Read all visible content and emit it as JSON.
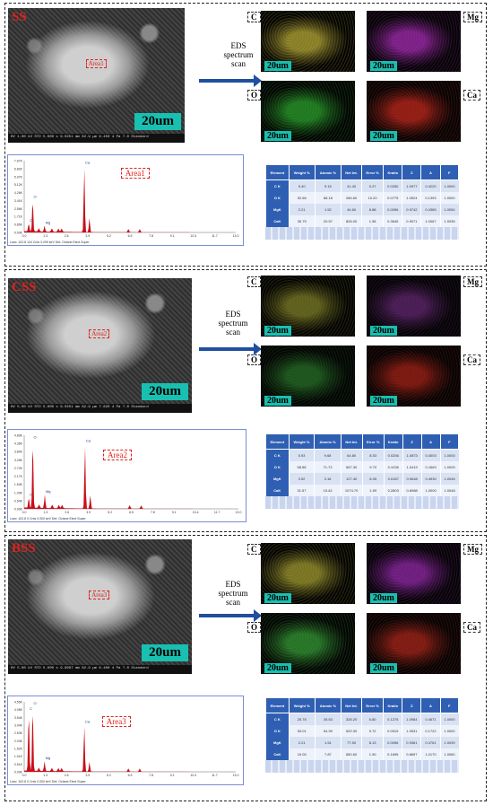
{
  "figure": {
    "eds_text": [
      "EDS",
      "spectrum",
      "scan"
    ],
    "panels": [
      {
        "sample": "SS",
        "area": "Area1",
        "scale": "20um",
        "sem_bar": "HV 1.00 kV  STD 5.000 s  9.0251 mm  82.9 µm  9.450 4 Pa  7.0  Standard",
        "spec_foot": "Lsec: 102.8      124 Cnts      3.299 keV      Det: Octane Elect Super",
        "elements": [
          "C",
          "Mg",
          "O",
          "Ca"
        ],
        "map_colors": [
          "#c8b83a",
          "#b52fc3",
          "#2fb02f",
          "#d22b1e"
        ],
        "spectrum": {
          "y_ticks": [
            "7.67K",
            "6.82K",
            "5.97K",
            "5.12K",
            "4.26K",
            "3.41K",
            "2.56K",
            "1.71K",
            "0.85K",
            "0.00K"
          ],
          "x_ticks": [
            "0.0",
            "1.3",
            "2.6",
            "3.9",
            "5.2",
            "6.5",
            "7.8",
            "9.1",
            "10.4",
            "11.7",
            "13.0"
          ],
          "peaks": [
            {
              "label": "C",
              "x": 0.28,
              "y": 0.12
            },
            {
              "label": "O",
              "x": 0.52,
              "y": 0.48
            },
            {
              "label": "Mg",
              "x": 1.25,
              "y": 0.09
            },
            {
              "label": "Ca",
              "x": 3.69,
              "y": 1.0
            },
            {
              "label": "",
              "x": 4.01,
              "y": 0.22
            }
          ]
        },
        "table": {
          "headers": [
            "Element",
            "Weight %",
            "Atomic %",
            "Net Int.",
            "Error %",
            "Kratio",
            "Z",
            "A",
            "F"
          ],
          "rows": [
            [
              "C K",
              "5.40",
              "9.15",
              "41.40",
              "9.27",
              "0.0250",
              "1.0977",
              "0.4220",
              "1.0000"
            ],
            [
              "O K",
              "52.66",
              "68.18",
              "266.60",
              "10.20",
              "0.0775",
              "1.0524",
              "0.1393",
              "1.0000"
            ],
            [
              "MgK",
              "2.21",
              "1.52",
              "44.60",
              "8.88",
              "0.0096",
              "0.9742",
              "0.4365",
              "1.0054"
            ],
            [
              "CaK",
              "39.75",
              "20.57",
              "828.00",
              "1.58",
              "0.3645",
              "0.9071",
              "1.0067",
              "1.0035"
            ]
          ]
        }
      },
      {
        "sample": "CSS",
        "area": "Area2",
        "scale": "20um",
        "sem_bar": "HV 5.00 kV  STD 5.000 s  9.0251 mm  82.9 µm  7.620 4 Pa  7.0  Standard",
        "spec_foot": "Lsec: 102.8      0 Cnts      0.000 keV      Det: Octane Elect Super",
        "elements": [
          "C",
          "Mg",
          "O",
          "Ca"
        ],
        "map_colors": [
          "#8a8a2a",
          "#6a2a7a",
          "#2a7a2a",
          "#b02418"
        ],
        "spectrum": {
          "y_ticks": [
            "4.89K",
            "4.35K",
            "3.80K",
            "3.26K",
            "2.72K",
            "2.17K",
            "1.63K",
            "1.09K",
            "0.54K",
            "0.00K"
          ],
          "x_ticks": [
            "0.0",
            "1.3",
            "2.6",
            "3.9",
            "5.2",
            "6.5",
            "7.8",
            "9.1",
            "10.4",
            "11.7",
            "13.0"
          ],
          "peaks": [
            {
              "label": "C",
              "x": 0.28,
              "y": 0.15
            },
            {
              "label": "O",
              "x": 0.52,
              "y": 1.0
            },
            {
              "label": "Mg",
              "x": 1.25,
              "y": 0.2
            },
            {
              "label": "Ca",
              "x": 3.69,
              "y": 0.95
            },
            {
              "label": "",
              "x": 4.01,
              "y": 0.2
            }
          ]
        },
        "table": {
          "headers": [
            "Element",
            "Weight %",
            "Atomic %",
            "Net Int.",
            "Error %",
            "Kratio",
            "Z",
            "A",
            "F"
          ],
          "rows": [
            [
              "C K",
              "5.93",
              "9.68",
              "64.80",
              "8.53",
              "0.0256",
              "1.0873",
              "0.4003",
              "1.0000"
            ],
            [
              "O K",
              "58.58",
              "71.73",
              "567.30",
              "9.70",
              "0.1036",
              "1.0419",
              "0.1663",
              "1.0000"
            ],
            [
              "MgK",
              "3.92",
              "3.16",
              "127.40",
              "8.05",
              "0.0187",
              "0.9648",
              "0.4930",
              "1.0046"
            ],
            [
              "CaK",
              "31.57",
              "15.43",
              "1074.70",
              "1.59",
              "0.2803",
              "0.8988",
              "1.0000",
              "1.0048"
            ]
          ]
        }
      },
      {
        "sample": "BSS",
        "area": "Area3",
        "scale": "20um",
        "sem_bar": "HV 5.00 kV  STD 5.000 s  9.8097 mm  82.9 µm  6.400 4 Pa  7.0  Standard",
        "spec_foot": "Lsec: 102.8      0 Cnts      0.000 keV      Det: Octane Elect Super",
        "elements": [
          "C",
          "Mg",
          "O",
          "Ca"
        ],
        "map_colors": [
          "#b0a834",
          "#a02cb8",
          "#3aa83a",
          "#b8281c"
        ],
        "spectrum": {
          "y_ticks": [
            "4.55K",
            "4.05K",
            "3.54K",
            "3.04K",
            "2.53K",
            "2.03K",
            "1.52K",
            "1.01K",
            "0.51K",
            "0.00K"
          ],
          "x_ticks": [
            "0.0",
            "1.3",
            "2.6",
            "3.9",
            "5.2",
            "6.5",
            "7.8",
            "9.1",
            "10.4",
            "11.7",
            "13.0"
          ],
          "peaks": [
            {
              "label": "C",
              "x": 0.28,
              "y": 0.92
            },
            {
              "label": "O",
              "x": 0.52,
              "y": 1.0
            },
            {
              "label": "Mg",
              "x": 1.25,
              "y": 0.15
            },
            {
              "label": "Ca",
              "x": 3.69,
              "y": 0.72
            },
            {
              "label": "",
              "x": 4.01,
              "y": 0.15
            }
          ]
        },
        "table": {
          "headers": [
            "Element",
            "Weight %",
            "Atomic %",
            "Net Int.",
            "Error %",
            "Kratio",
            "Z",
            "A",
            "F"
          ],
          "rows": [
            [
              "C K",
              "25.78",
              "35.63",
              "328.20",
              "6.80",
              "0.1275",
              "1.0984",
              "0.4671",
              "1.0000"
            ],
            [
              "O K",
              "53.01",
              "54.99",
              "529.30",
              "9.72",
              "0.0915",
              "1.0531",
              "0.1722",
              "1.0000"
            ],
            [
              "MgK",
              "2.21",
              "1.51",
              "77.50",
              "8.13",
              "0.0096",
              "0.9361",
              "0.4761",
              "1.0039"
            ],
            [
              "CaK",
              "19.00",
              "7.87",
              "650.60",
              "1.90",
              "0.1695",
              "0.8697",
              "1.0170",
              "1.0060"
            ]
          ]
        }
      }
    ]
  }
}
